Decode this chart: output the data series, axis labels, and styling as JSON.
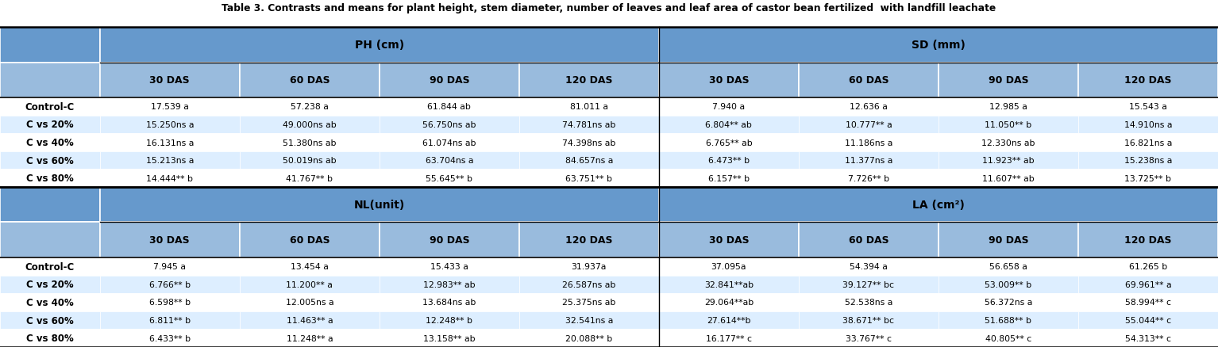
{
  "title": "Table 3. Contrasts and means for plant height, stem diameter, number of leaves and leaf area of castor bean fertilized  with landfill leachate",
  "header_bg": "#6699CC",
  "subheader_bg": "#99BBDD",
  "row_bg_odd": "#FFFFFF",
  "row_bg_even": "#DDEEFF",
  "sections_top": [
    {
      "label": "PH (cm)",
      "cols": [
        "30 DAS",
        "60 DAS",
        "90 DAS",
        "120 DAS"
      ]
    },
    {
      "label": "SD (mm)",
      "cols": [
        "30 DAS",
        "60 DAS",
        "90 DAS",
        "120 DAS"
      ]
    }
  ],
  "sections_bot": [
    {
      "label": "NL(unit)",
      "cols": [
        "30 DAS",
        "60 DAS",
        "90 DAS",
        "120 DAS"
      ]
    },
    {
      "label": "LA (cm²)",
      "cols": [
        "30 DAS",
        "60 DAS",
        "90 DAS",
        "120 DAS"
      ]
    }
  ],
  "rows": [
    "Control-C",
    "C vs 20%",
    "C vs 40%",
    "C vs 60%",
    "C vs 80%"
  ],
  "data_top": [
    [
      [
        "17.539 a",
        "57.238 a",
        "61.844 ab",
        "81.011 a"
      ],
      [
        "15.250ns a",
        "49.000ns ab",
        "56.750ns ab",
        "74.781ns ab"
      ],
      [
        "16.131ns a",
        "51.380ns ab",
        "61.074ns ab",
        "74.398ns ab"
      ],
      [
        "15.213ns a",
        "50.019ns ab",
        "63.704ns a",
        "84.657ns a"
      ],
      [
        "14.444** b",
        "41.767** b",
        "55.645** b",
        "63.751** b"
      ]
    ],
    [
      [
        "7.940 a",
        "12.636 a",
        "12.985 a",
        "15.543 a"
      ],
      [
        "6.804** ab",
        "10.777** a",
        "11.050** b",
        "14.910ns a"
      ],
      [
        "6.765** ab",
        "11.186ns a",
        "12.330ns ab",
        "16.821ns a"
      ],
      [
        "6.473** b",
        "11.377ns a",
        "11.923** ab",
        "15.238ns a"
      ],
      [
        "6.157** b",
        "7.726** b",
        "11.607** ab",
        "13.725** b"
      ]
    ]
  ],
  "data_bot": [
    [
      [
        "7.945 a",
        "13.454 a",
        "15.433 a",
        "31.937a"
      ],
      [
        "6.766** b",
        "11.200** a",
        "12.983** ab",
        "26.587ns ab"
      ],
      [
        "6.598** b",
        "12.005ns a",
        "13.684ns ab",
        "25.375ns ab"
      ],
      [
        "6.811** b",
        "11.463** a",
        "12.248** b",
        "32.541ns a"
      ],
      [
        "6.433** b",
        "11.248** a",
        "13.158** ab",
        "20.088** b"
      ]
    ],
    [
      [
        "37.095a",
        "54.394 a",
        "56.658 a",
        "61.265 b"
      ],
      [
        "32.841**ab",
        "39.127** bc",
        "53.009** b",
        "69.961** a"
      ],
      [
        "29.064**ab",
        "52.538ns a",
        "56.372ns a",
        "58.994** c"
      ],
      [
        "27.614**b",
        "38.671** bc",
        "51.688** b",
        "55.044** c"
      ],
      [
        "16.177** c",
        "33.767** c",
        "40.805** c",
        "54.313** c"
      ]
    ]
  ]
}
